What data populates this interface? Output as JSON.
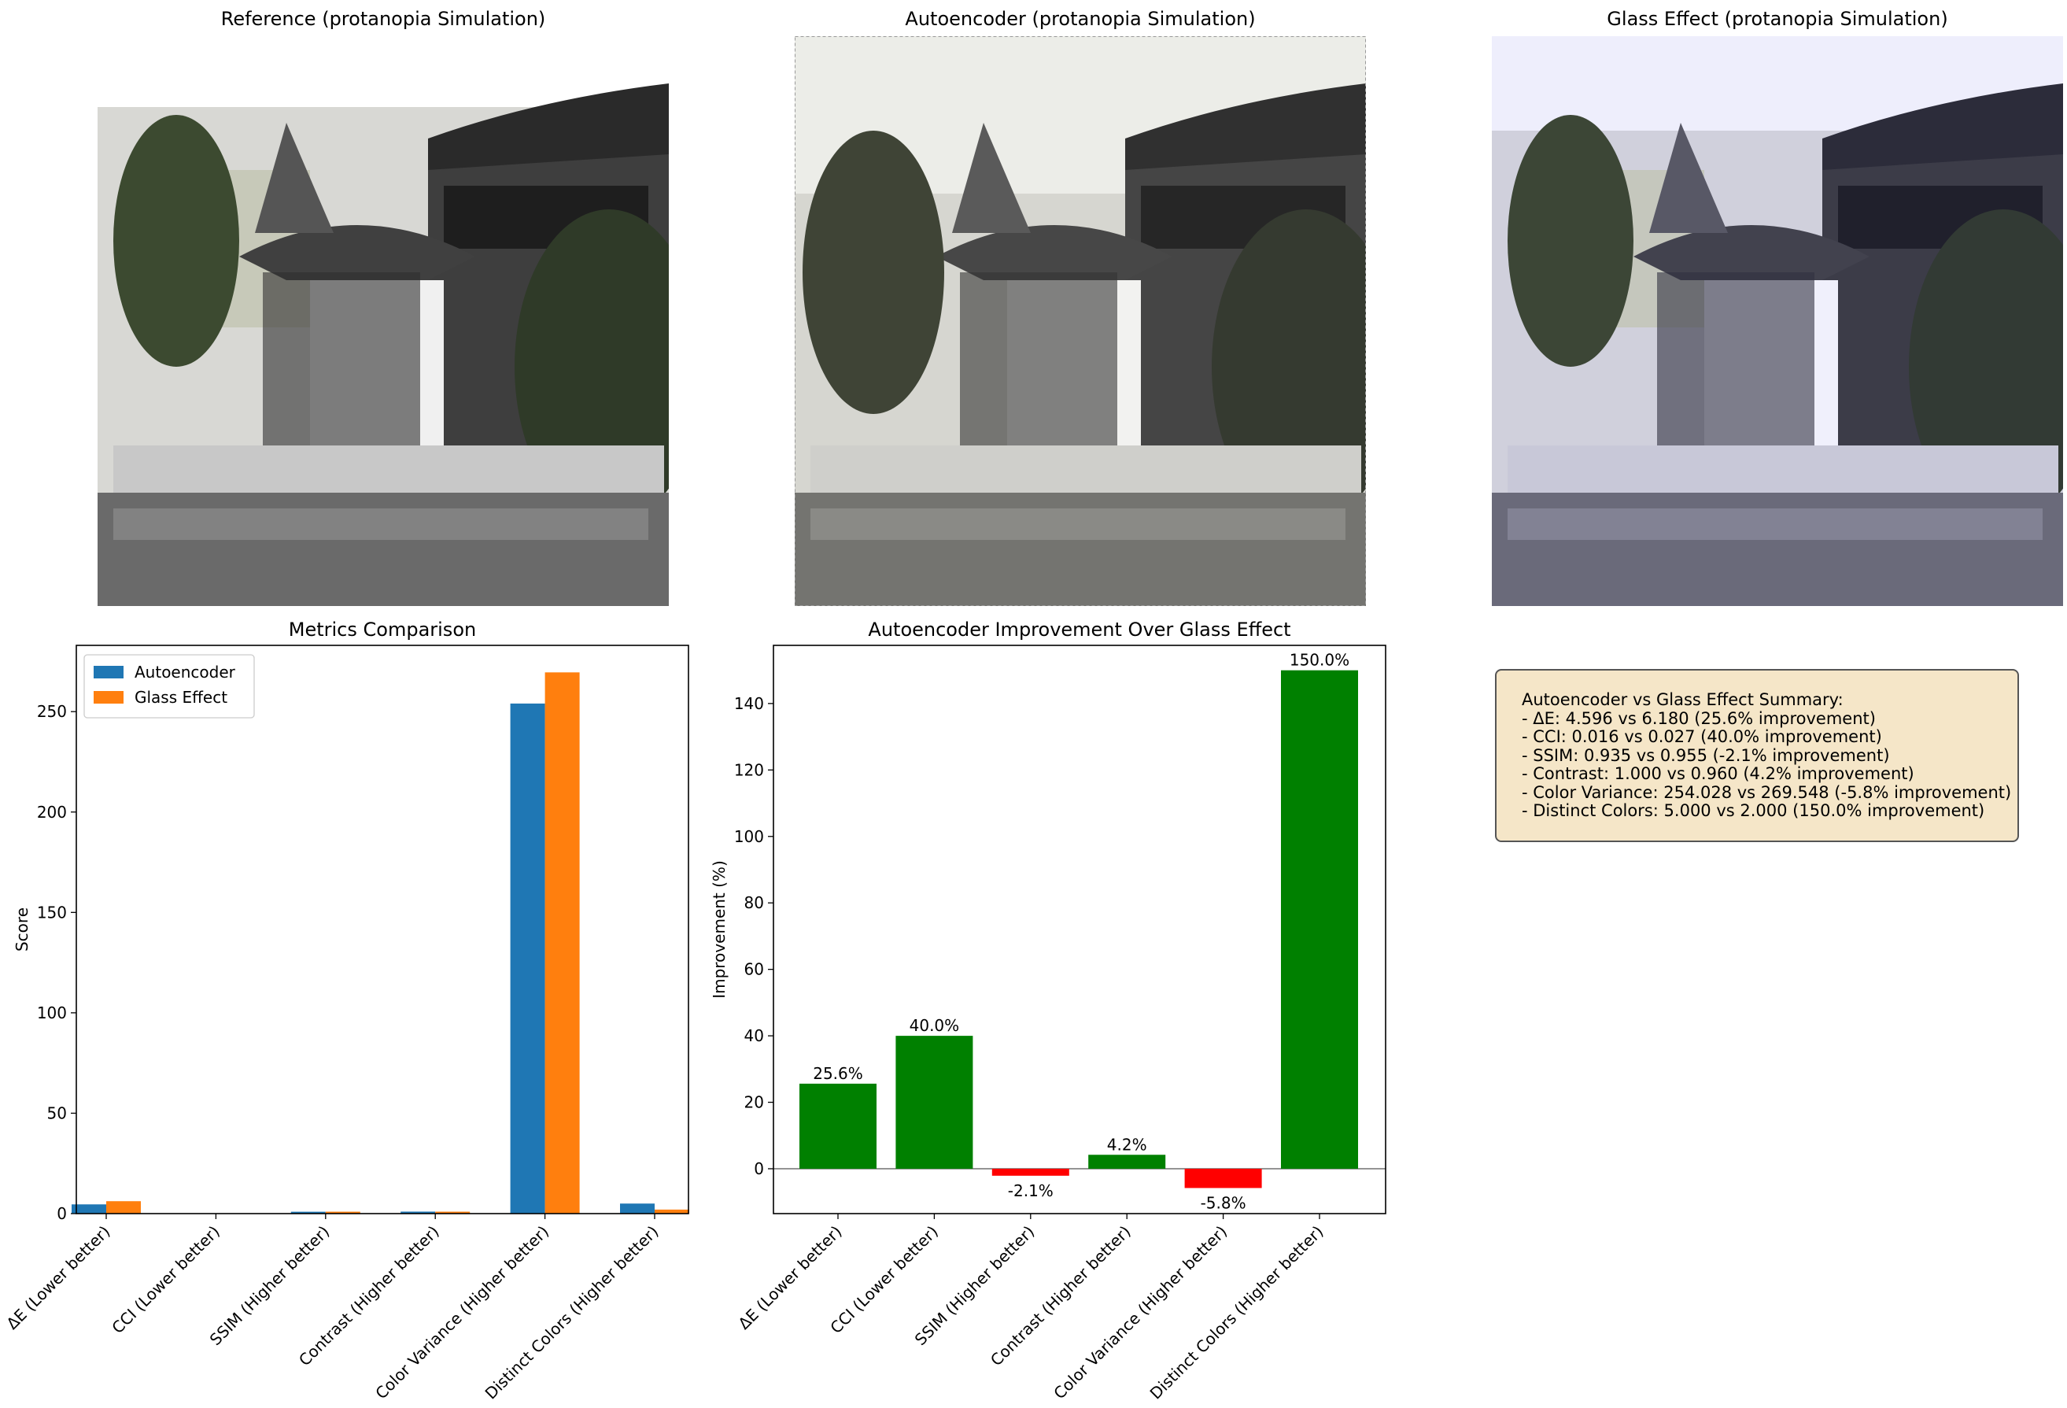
{
  "panels": {
    "reference_title": "Reference (protanopia Simulation)",
    "autoencoder_title": "Autoencoder (protanopia Simulation)",
    "glass_title": "Glass Effect (protanopia Simulation)"
  },
  "summary": {
    "title": "Autoencoder vs Glass Effect Summary:",
    "lines": [
      "- ΔE: 4.596 vs 6.180 (25.6% improvement)",
      "- CCI: 0.016 vs 0.027 (40.0% improvement)",
      "- SSIM: 0.935 vs 0.955 (-2.1% improvement)",
      "- Contrast: 1.000 vs 0.960 (4.2% improvement)",
      "- Color Variance: 254.028 vs 269.548 (-5.8% improvement)",
      "- Distinct Colors: 5.000 vs 2.000 (150.0% improvement)"
    ]
  },
  "colors": {
    "autoencoder": "#1f77b4",
    "glass": "#ff7f0e",
    "positive": "#008000",
    "negative": "#ff0000",
    "summary_bg": "#f5e6c8"
  },
  "chart_data": [
    {
      "type": "bar",
      "title": "Metrics Comparison",
      "xlabel": "",
      "ylabel": "Score",
      "categories": [
        "ΔE (Lower better)",
        "CCI (Lower better)",
        "SSIM (Higher better)",
        "Contrast (Higher better)",
        "Color Variance (Higher better)",
        "Distinct Colors (Higher better)"
      ],
      "series": [
        {
          "name": "Autoencoder",
          "values": [
            4.596,
            0.016,
            0.935,
            1.0,
            254.028,
            5.0
          ]
        },
        {
          "name": "Glass Effect",
          "values": [
            6.18,
            0.027,
            0.955,
            0.96,
            269.548,
            2.0
          ]
        }
      ],
      "ylim": [
        0,
        283
      ],
      "yticks": [
        0,
        50,
        100,
        150,
        200,
        250
      ],
      "legend": "top-left",
      "grid": false
    },
    {
      "type": "bar",
      "title": "Autoencoder Improvement Over Glass Effect",
      "xlabel": "",
      "ylabel": "Improvement (%)",
      "categories": [
        "ΔE (Lower better)",
        "CCI (Lower better)",
        "SSIM (Higher better)",
        "Contrast (Higher better)",
        "Color Variance (Higher better)",
        "Distinct Colors (Higher better)"
      ],
      "values": [
        25.6,
        40.0,
        -2.1,
        4.2,
        -5.8,
        150.0
      ],
      "labels": [
        "25.6%",
        "40.0%",
        "-2.1%",
        "4.2%",
        "-5.8%",
        "150.0%"
      ],
      "ylim": [
        -13.5,
        157.5
      ],
      "yticks": [
        0,
        20,
        40,
        60,
        80,
        100,
        120,
        140
      ],
      "grid": false
    }
  ]
}
